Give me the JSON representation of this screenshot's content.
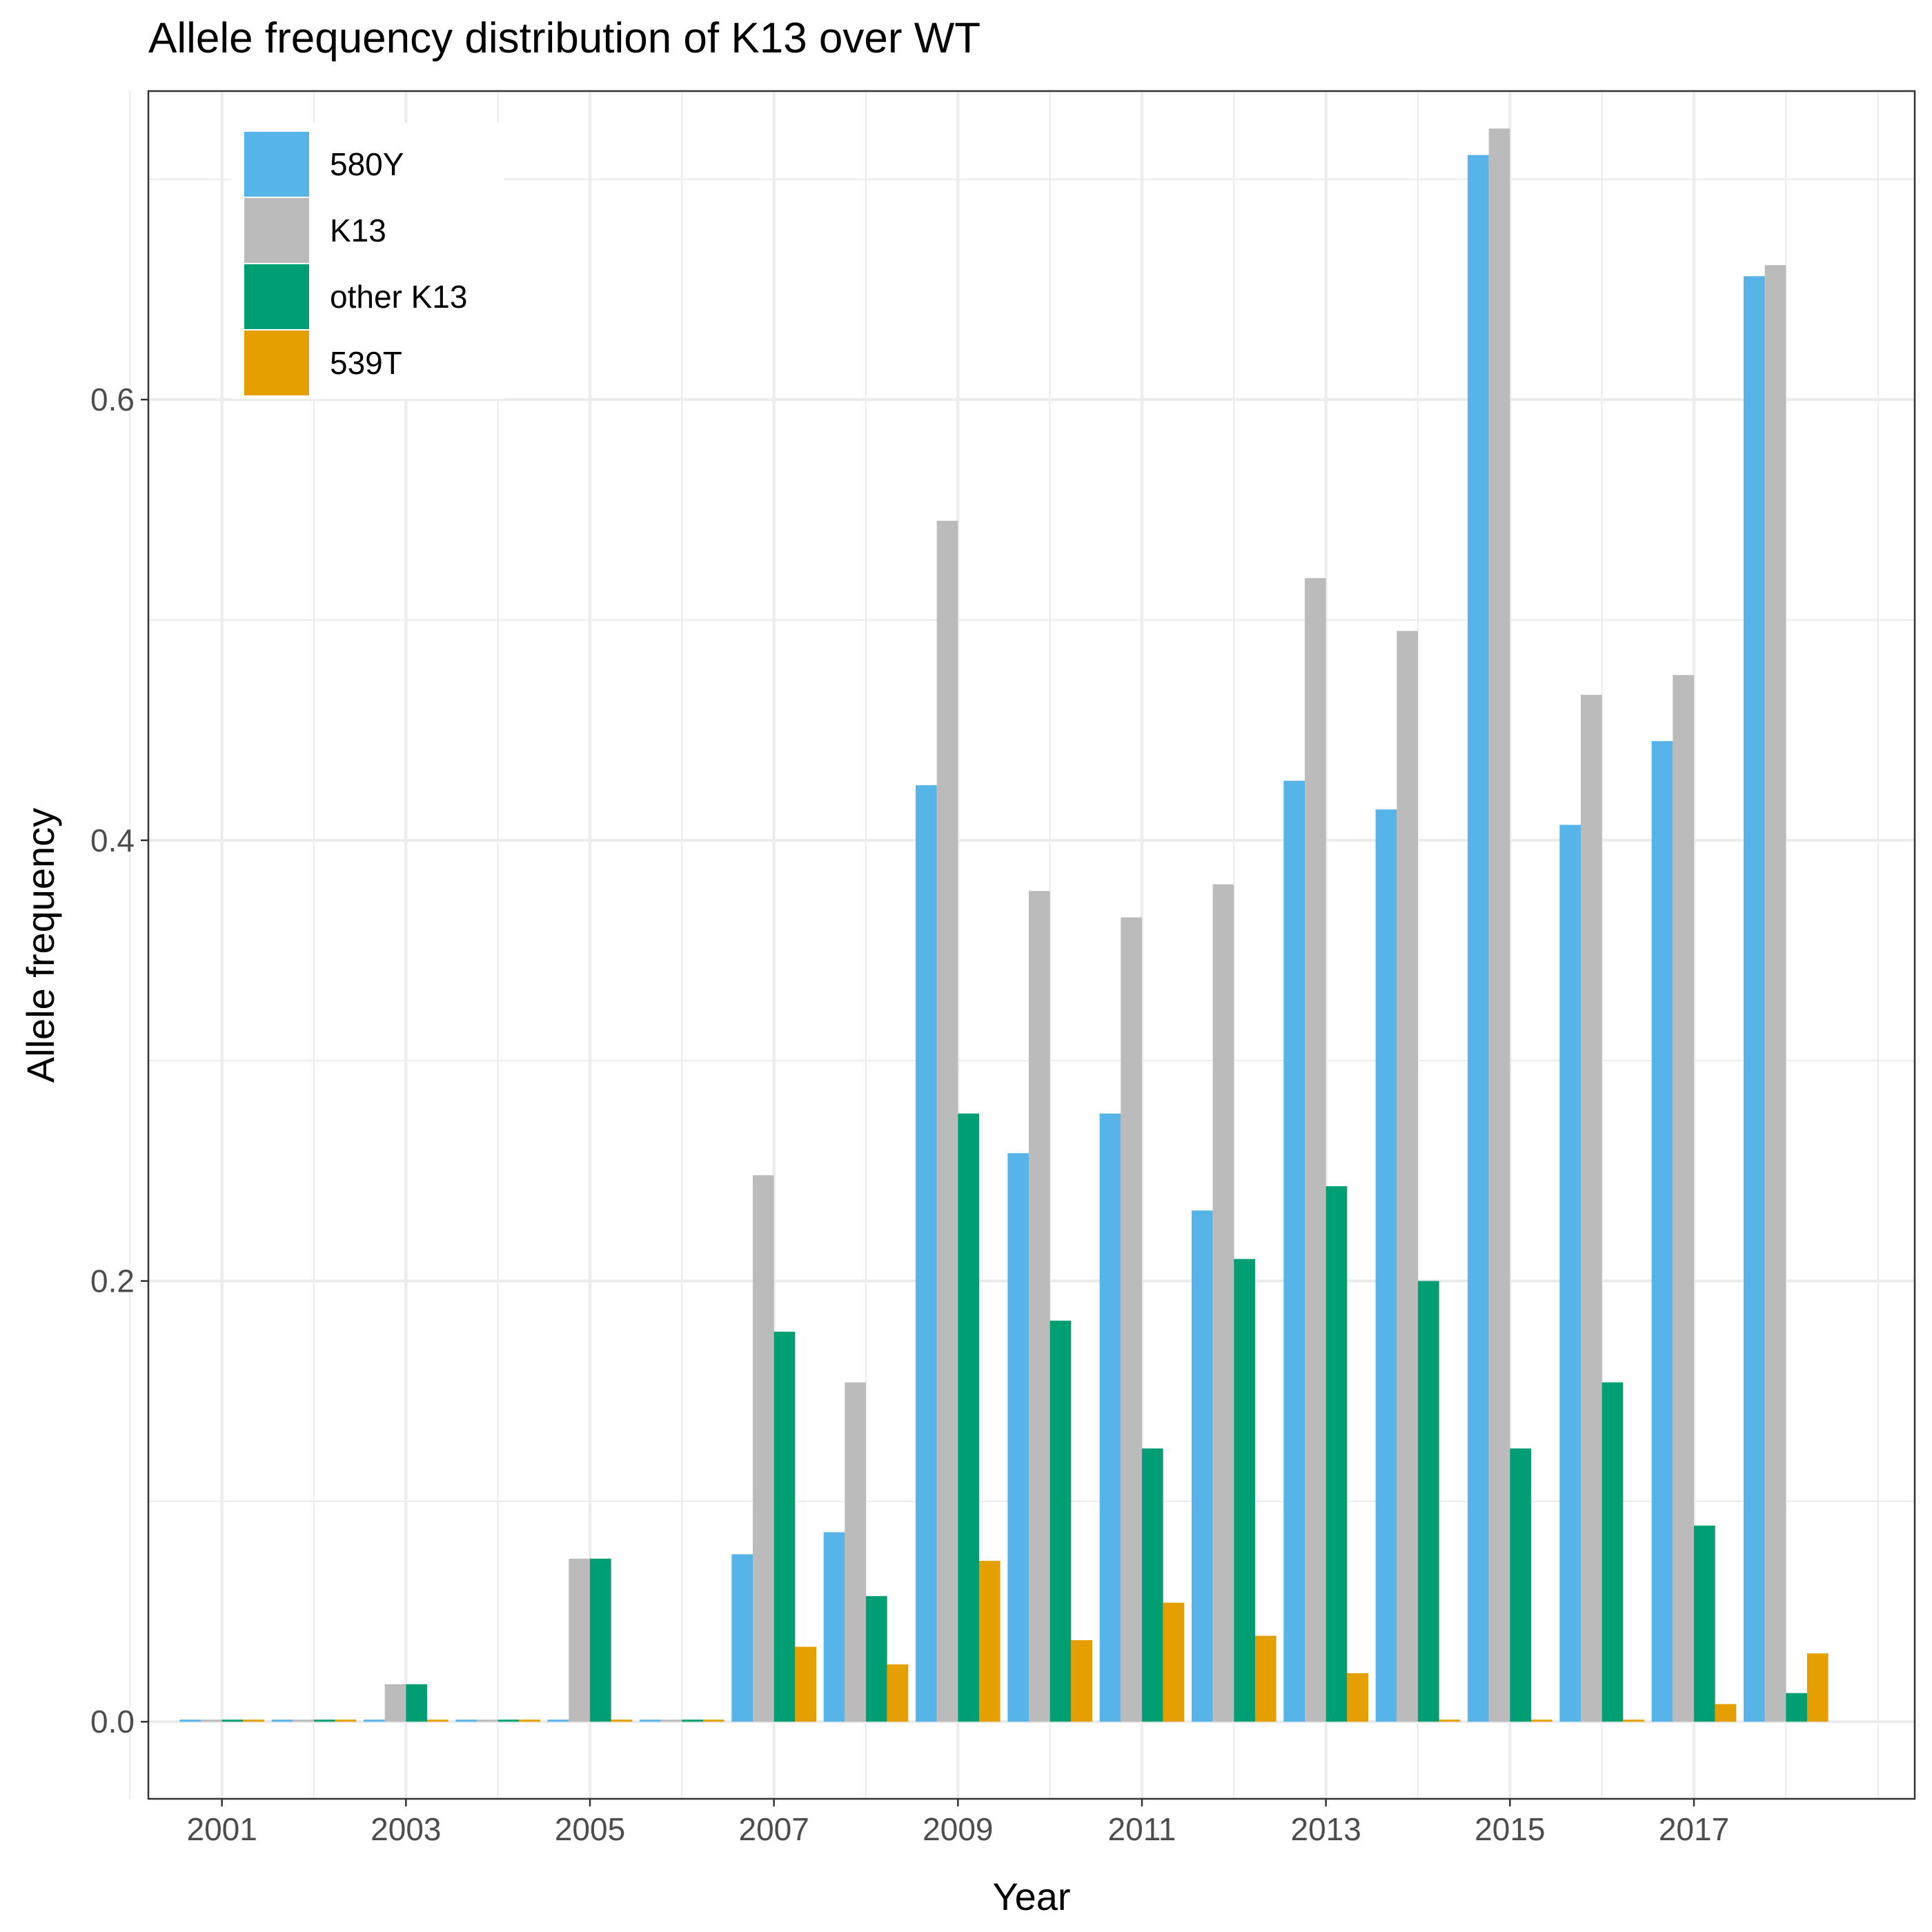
{
  "chart_data": {
    "type": "bar",
    "title": "Allele frequency distribution of K13 over WT",
    "xlabel": "Year",
    "ylabel": "Allele frequency",
    "categories": [
      "2001",
      "2002",
      "2003",
      "2004",
      "2005",
      "2006",
      "2007",
      "2008",
      "2009",
      "2010",
      "2011",
      "2012",
      "2013",
      "2014",
      "2015",
      "2016",
      "2017",
      "2018"
    ],
    "x_tick_labels": [
      "2001",
      "2003",
      "2005",
      "2007",
      "2009",
      "2011",
      "2013",
      "2015",
      "2017"
    ],
    "y_tick_labels": [
      "0.0",
      "0.2",
      "0.4",
      "0.6"
    ],
    "y_ticks": [
      0,
      0.2,
      0.4,
      0.6
    ],
    "ylim": [
      -0.035,
      0.74
    ],
    "grid": true,
    "legend_position": "top-left",
    "series": [
      {
        "name": "580Y",
        "color": "#56B4E9",
        "values": [
          0,
          0,
          0,
          0,
          0,
          0,
          0.076,
          0.086,
          0.425,
          0.258,
          0.276,
          0.232,
          0.427,
          0.414,
          0.711,
          0.407,
          0.445,
          0.656
        ]
      },
      {
        "name": "K13",
        "color": "#BBBBBB",
        "values": [
          0,
          0,
          0.017,
          0,
          0.074,
          0,
          0.248,
          0.154,
          0.545,
          0.377,
          0.365,
          0.38,
          0.519,
          0.495,
          0.723,
          0.466,
          0.475,
          0.661
        ]
      },
      {
        "name": "other K13",
        "color": "#009E73",
        "values": [
          0,
          0,
          0.017,
          0,
          0.074,
          0,
          0.177,
          0.057,
          0.276,
          0.182,
          0.124,
          0.21,
          0.243,
          0.2,
          0.124,
          0.154,
          0.089,
          0.013
        ]
      },
      {
        "name": "539T",
        "color": "#E69F00",
        "values": [
          0,
          0,
          0,
          0,
          0,
          0,
          0.034,
          0.026,
          0.073,
          0.037,
          0.054,
          0.039,
          0.022,
          0,
          0,
          0,
          0.008,
          0.031
        ]
      }
    ]
  }
}
